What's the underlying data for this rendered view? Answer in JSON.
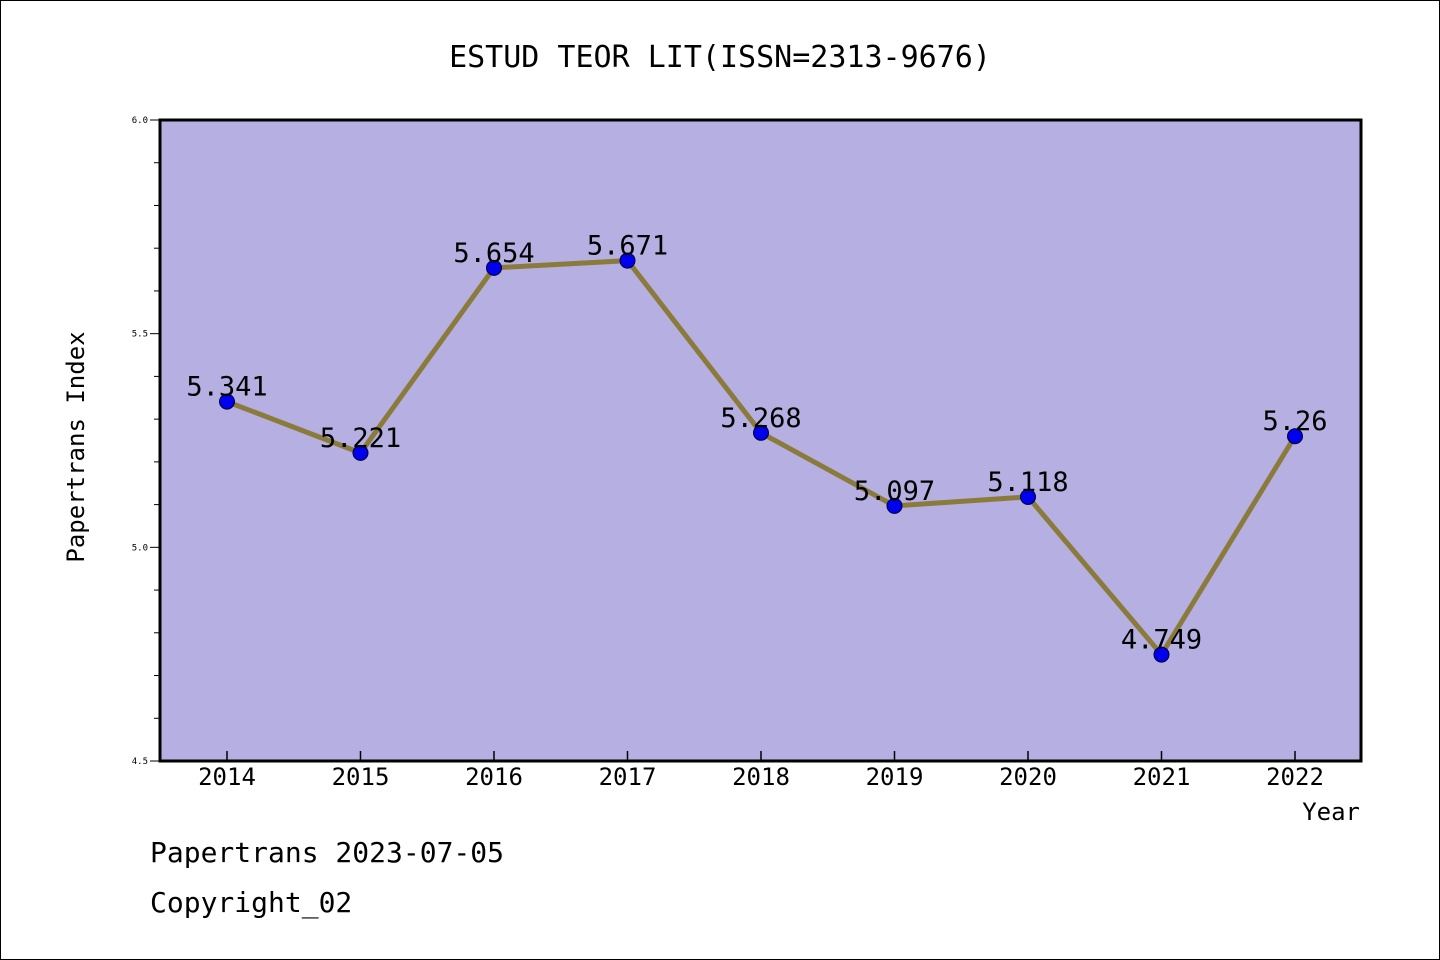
{
  "chart_data": {
    "type": "line",
    "title": "ESTUD TEOR LIT(ISSN=2313-9676)",
    "xlabel": "Year",
    "ylabel": "Papertrans Index",
    "categories": [
      "2014",
      "2015",
      "2016",
      "2017",
      "2018",
      "2019",
      "2020",
      "2021",
      "2022"
    ],
    "series": [
      {
        "values": [
          5.341,
          5.221,
          5.654,
          5.671,
          5.268,
          5.097,
          5.118,
          4.749,
          5.26
        ],
        "data_labels": [
          "5.341",
          "5.221",
          "5.654",
          "5.671",
          "5.268",
          "5.097",
          "5.118",
          "4.749",
          "5.26"
        ]
      }
    ],
    "ylim": [
      4.5,
      6.0
    ],
    "yticks": [
      "4.5",
      "5.0",
      "5.5",
      "6.0"
    ],
    "grid": false,
    "colors": {
      "plot_background": "#b5afe2",
      "line": "#8b7b3a",
      "marker": "#0000ee"
    }
  },
  "footer": {
    "line1": "Papertrans 2023-07-05",
    "line2": "Copyright_02"
  }
}
